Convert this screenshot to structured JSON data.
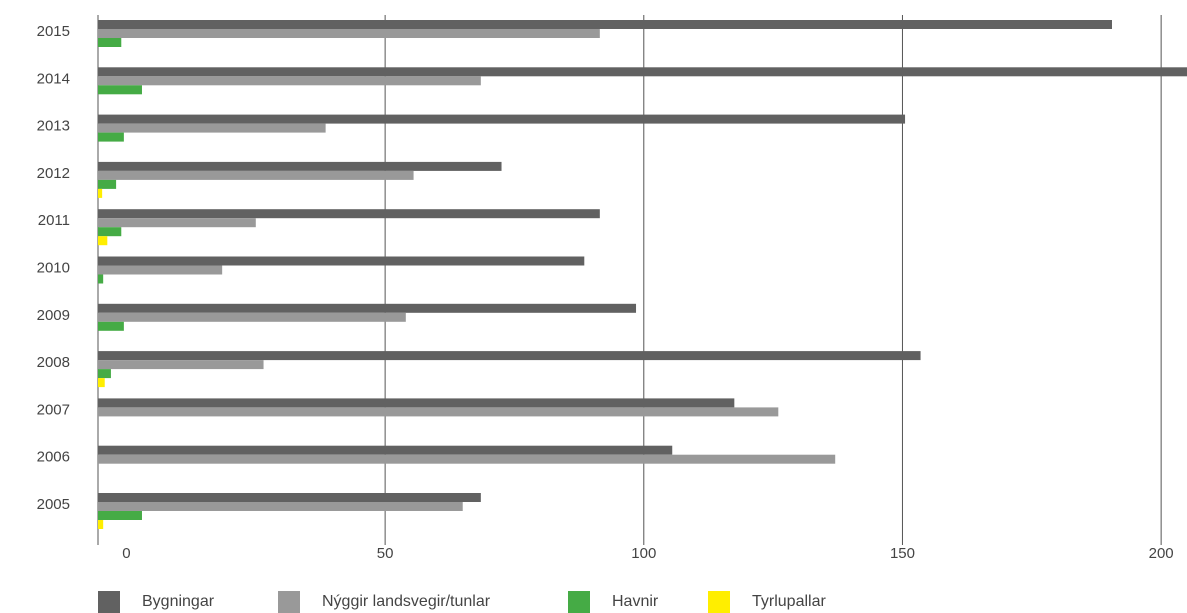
{
  "chart_data": {
    "type": "bar",
    "orientation": "horizontal",
    "categories": [
      "2015",
      "2014",
      "2013",
      "2012",
      "2011",
      "2010",
      "2009",
      "2008",
      "2007",
      "2006",
      "2005"
    ],
    "series": [
      {
        "name": "Bygningar",
        "color": "#616161",
        "values": [
          196,
          211,
          156,
          78,
          97,
          94,
          104,
          159,
          123,
          111,
          74
        ]
      },
      {
        "name": "Nýggir landsvegir/tunlar",
        "color": "#999999",
        "values": [
          97,
          74,
          44,
          61,
          30.5,
          24,
          59.5,
          32,
          131.5,
          142.5,
          70.5
        ]
      },
      {
        "name": "Havnir",
        "color": "#45ab45",
        "values": [
          4.5,
          8.5,
          5,
          3.5,
          4.5,
          1,
          5,
          2.5,
          0,
          0,
          8.5
        ]
      },
      {
        "name": "Tyrlupallar",
        "color": "#ffee00",
        "values": [
          0,
          0,
          0,
          0.8,
          1.8,
          0,
          0,
          1.3,
          0,
          0,
          1
        ]
      }
    ],
    "x_ticks": [
      0,
      50,
      100,
      150,
      200
    ],
    "xlim": [
      -5.5,
      205
    ],
    "grid": true,
    "legend_position": "bottom"
  }
}
